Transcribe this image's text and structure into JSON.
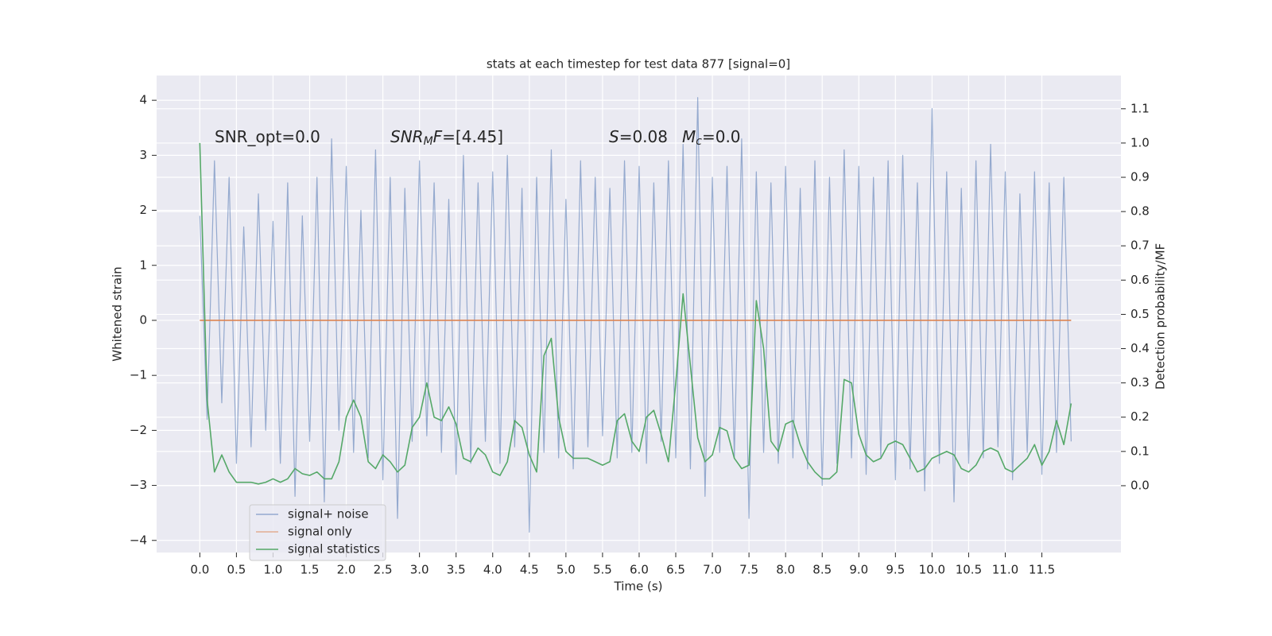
{
  "chart_data": {
    "type": "line",
    "title": "stats at each timestep for test data 877 [signal=0]",
    "xlabel": "Time (s)",
    "ylabel": "Whitened strain",
    "y2label": "Detection probability/MF",
    "grid": true,
    "legend": "lower left",
    "xlim": [
      -0.59,
      12.58
    ],
    "ylim": [
      -4.22,
      4.45
    ],
    "y2lim": [
      -0.195,
      1.197
    ],
    "xticks": [
      {
        "value": 0,
        "label": "0.0"
      },
      0.5,
      {
        "value": 1,
        "label": "1.0"
      },
      1.5,
      {
        "value": 2,
        "label": "2.0"
      },
      2.5,
      {
        "value": 3,
        "label": "3.0"
      },
      3.5,
      {
        "value": 4,
        "label": "4.0"
      },
      4.5,
      {
        "value": 5,
        "label": "5.0"
      },
      5.5,
      {
        "value": 6,
        "label": "6.0"
      },
      6.5,
      {
        "value": 7,
        "label": "7.0"
      },
      7.5,
      {
        "value": 8,
        "label": "8.0"
      },
      8.5,
      {
        "value": 9,
        "label": "9.0"
      },
      9.5,
      {
        "value": 10,
        "label": "10.0"
      },
      10.5,
      {
        "value": 11,
        "label": "11.0"
      },
      11.5
    ],
    "yticks": [
      {
        "value": -4,
        "label": "−4"
      },
      {
        "value": -3,
        "label": "−3"
      },
      {
        "value": -2,
        "label": "−2"
      },
      {
        "value": -1,
        "label": "−1"
      },
      0,
      1,
      2,
      3,
      4
    ],
    "y2ticks": [
      {
        "value": 0,
        "label": "0.0"
      },
      0.1,
      0.2,
      0.3,
      0.4,
      0.5,
      0.6,
      0.7,
      0.8,
      0.9,
      {
        "value": 1,
        "label": "1.0"
      },
      1.1
    ],
    "annotations": [
      [
        {
          "text": "SNR_opt=0.0"
        }
      ],
      [
        {
          "text": "SNR",
          "italic": true
        },
        {
          "text": "M",
          "italic": true,
          "sub": true
        },
        {
          "text": "F",
          "italic": true
        },
        {
          "text": "=[4.45]"
        }
      ],
      [
        {
          "text": "S",
          "italic": true
        },
        {
          "text": "=0.08"
        }
      ],
      [
        {
          "text": "M",
          "italic": true
        },
        {
          "text": "c",
          "italic": true,
          "sub": true
        },
        {
          "text": "=0.0"
        }
      ]
    ],
    "x": [
      0,
      0.1,
      0.2,
      0.3,
      0.4,
      0.5,
      0.6,
      0.7,
      0.8,
      0.9,
      1,
      1.1,
      1.2,
      1.3,
      1.4,
      1.5,
      1.6,
      1.7,
      1.8,
      1.9,
      2,
      2.1,
      2.2,
      2.3,
      2.4,
      2.5,
      2.6,
      2.7,
      2.8,
      2.9,
      3,
      3.1,
      3.2,
      3.3,
      3.4,
      3.5,
      3.6,
      3.7,
      3.8,
      3.9,
      4,
      4.1,
      4.2,
      4.3,
      4.4,
      4.5,
      4.6,
      4.7,
      4.8,
      4.9,
      5,
      5.1,
      5.2,
      5.3,
      5.4,
      5.5,
      5.6,
      5.7,
      5.8,
      5.9,
      6,
      6.1,
      6.2,
      6.3,
      6.4,
      6.5,
      6.6,
      6.7,
      6.8,
      6.9,
      7,
      7.1,
      7.2,
      7.3,
      7.4,
      7.5,
      7.6,
      7.7,
      7.8,
      7.9,
      8,
      8.1,
      8.2,
      8.3,
      8.4,
      8.5,
      8.6,
      8.7,
      8.8,
      8.9,
      9,
      9.1,
      9.2,
      9.3,
      9.4,
      9.5,
      9.6,
      9.7,
      9.8,
      9.9,
      10,
      10.1,
      10.2,
      10.3,
      10.4,
      10.5,
      10.6,
      10.7,
      10.8,
      10.9,
      11,
      11.1,
      11.2,
      11.3,
      11.4,
      11.5,
      11.6,
      11.7,
      11.8,
      11.9
    ],
    "series": [
      {
        "name": "signal+ noise",
        "color": "#4c72b0",
        "axis": "y",
        "values": [
          1.9,
          -1.8,
          2.9,
          -1.5,
          2.6,
          -2.6,
          1.7,
          -2.3,
          2.3,
          -2.0,
          1.8,
          -2.6,
          2.5,
          -3.2,
          1.9,
          -2.2,
          2.6,
          -3.3,
          3.3,
          -2.0,
          2.8,
          -2.4,
          2.0,
          -2.5,
          3.1,
          -2.9,
          2.6,
          -3.6,
          2.4,
          -2.2,
          2.9,
          -2.1,
          2.5,
          -2.4,
          2.2,
          -2.8,
          3.0,
          -2.6,
          2.5,
          -2.2,
          2.7,
          -2.6,
          3.0,
          -2.3,
          2.4,
          -3.85,
          2.6,
          -2.4,
          3.1,
          -2.5,
          2.2,
          -2.7,
          2.9,
          -2.3,
          2.6,
          -2.1,
          2.4,
          -2.5,
          2.9,
          -2.4,
          2.8,
          -2.6,
          2.5,
          -2.2,
          2.9,
          -2.5,
          3.2,
          -2.7,
          4.05,
          -3.2,
          2.6,
          -2.4,
          2.8,
          -2.5,
          3.3,
          -3.6,
          2.7,
          -2.4,
          2.5,
          -2.6,
          2.8,
          -2.5,
          2.4,
          -2.7,
          2.9,
          -3.0,
          2.6,
          -2.6,
          3.1,
          -2.5,
          2.8,
          -2.8,
          2.6,
          -2.5,
          2.9,
          -2.9,
          3.0,
          -2.7,
          2.5,
          -3.1,
          3.85,
          -2.6,
          2.7,
          -3.3,
          2.4,
          -2.6,
          2.9,
          -2.5,
          3.2,
          -2.3,
          2.7,
          -2.9,
          2.3,
          -2.4,
          2.7,
          -2.8,
          2.5,
          -2.4,
          2.6,
          -2.2
        ]
      },
      {
        "name": "signal only",
        "color": "#dd8452",
        "axis": "y",
        "values": [
          0,
          0,
          0,
          0,
          0,
          0,
          0,
          0,
          0,
          0,
          0,
          0,
          0,
          0,
          0,
          0,
          0,
          0,
          0,
          0,
          0,
          0,
          0,
          0,
          0,
          0,
          0,
          0,
          0,
          0,
          0,
          0,
          0,
          0,
          0,
          0,
          0,
          0,
          0,
          0,
          0,
          0,
          0,
          0,
          0,
          0,
          0,
          0,
          0,
          0,
          0,
          0,
          0,
          0,
          0,
          0,
          0,
          0,
          0,
          0,
          0,
          0,
          0,
          0,
          0,
          0,
          0,
          0,
          0,
          0,
          0,
          0,
          0,
          0,
          0,
          0,
          0,
          0,
          0,
          0,
          0,
          0,
          0,
          0,
          0,
          0,
          0,
          0,
          0,
          0,
          0,
          0,
          0,
          0,
          0,
          0,
          0,
          0,
          0,
          0,
          0,
          0,
          0,
          0,
          0,
          0,
          0,
          0,
          0,
          0,
          0,
          0,
          0,
          0,
          0,
          0,
          0,
          0,
          0,
          0
        ]
      },
      {
        "name": "signal statistics",
        "color": "#55a868",
        "axis": "y2",
        "values": [
          1.0,
          0.25,
          0.04,
          0.09,
          0.04,
          0.01,
          0.01,
          0.01,
          0.005,
          0.01,
          0.02,
          0.01,
          0.02,
          0.05,
          0.035,
          0.03,
          0.04,
          0.02,
          0.02,
          0.07,
          0.2,
          0.25,
          0.2,
          0.07,
          0.05,
          0.09,
          0.07,
          0.04,
          0.06,
          0.17,
          0.2,
          0.3,
          0.2,
          0.19,
          0.23,
          0.18,
          0.08,
          0.07,
          0.11,
          0.09,
          0.04,
          0.03,
          0.07,
          0.19,
          0.17,
          0.09,
          0.04,
          0.38,
          0.43,
          0.2,
          0.1,
          0.08,
          0.08,
          0.08,
          0.07,
          0.06,
          0.07,
          0.19,
          0.21,
          0.13,
          0.1,
          0.2,
          0.22,
          0.15,
          0.07,
          0.3,
          0.56,
          0.35,
          0.14,
          0.07,
          0.09,
          0.17,
          0.16,
          0.08,
          0.05,
          0.06,
          0.54,
          0.4,
          0.13,
          0.1,
          0.18,
          0.19,
          0.12,
          0.07,
          0.04,
          0.02,
          0.02,
          0.04,
          0.31,
          0.3,
          0.15,
          0.09,
          0.07,
          0.08,
          0.12,
          0.13,
          0.12,
          0.08,
          0.04,
          0.05,
          0.08,
          0.09,
          0.1,
          0.09,
          0.05,
          0.04,
          0.06,
          0.1,
          0.11,
          0.1,
          0.05,
          0.04,
          0.06,
          0.08,
          0.12,
          0.06,
          0.1,
          0.19,
          0.12,
          0.24
        ]
      }
    ]
  }
}
